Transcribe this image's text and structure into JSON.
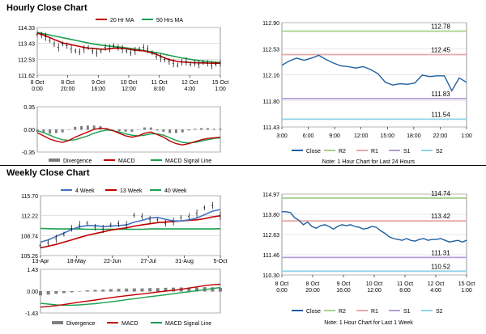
{
  "sections": {
    "hourly_title": "Hourly Close Chart",
    "weekly_title": "Weekly Close Chart"
  },
  "colors": {
    "price": "#000000",
    "ma_short": "#c00000",
    "ma_long": "#1aa050",
    "ma_mid": "#4472c4",
    "close": "#1f5fa0",
    "r2": "#a8d08d",
    "r1": "#e8a8a8",
    "s1": "#b39ddb",
    "s2": "#8fd3e8",
    "macd": "#c00000",
    "signal": "#1aa050",
    "divergence": "#7f7f7f"
  },
  "chart_data": [
    {
      "id": "hourly-price",
      "type": "line",
      "title": "Hourly Close Chart",
      "legend": [
        "20 Hr MA",
        "50 Hrs MA"
      ],
      "y_ticks": [
        "114.33",
        "113.43",
        "112.53",
        "111.62"
      ],
      "ylim": [
        111.62,
        114.33
      ],
      "x_labels": [
        "8 Oct\n0:00",
        "8 Oct\n20:00",
        "9 Oct\n16:00",
        "10 Oct\n12:00",
        "11 Oct\n8:00",
        "12 Oct\n4:00",
        "15 Oct\n1:00"
      ],
      "price": [
        113.95,
        113.9,
        113.8,
        113.6,
        113.4,
        113.2,
        113.4,
        113.3,
        113.1,
        113.0,
        112.95,
        113.1,
        113.2,
        113.0,
        112.9,
        113.0,
        113.2,
        113.15,
        113.3,
        113.2,
        113.1,
        113.0,
        112.9,
        113.0,
        113.1,
        113.2,
        113.1,
        112.9,
        112.7,
        112.6,
        112.5,
        112.4,
        112.3,
        112.2,
        112.35,
        112.4,
        112.25,
        112.3,
        112.25,
        112.35,
        112.3,
        112.2,
        112.25,
        112.3
      ],
      "ma20": [
        114.0,
        113.95,
        113.85,
        113.75,
        113.65,
        113.55,
        113.45,
        113.4,
        113.35,
        113.3,
        113.25,
        113.2,
        113.15,
        113.15,
        113.12,
        113.1,
        113.1,
        113.12,
        113.15,
        113.15,
        113.15,
        113.12,
        113.08,
        113.05,
        113.02,
        113.0,
        112.95,
        112.88,
        112.8,
        112.7,
        112.6,
        112.5,
        112.45,
        112.4,
        112.38,
        112.36,
        112.34,
        112.33,
        112.32,
        112.32,
        112.31,
        112.3,
        112.3,
        112.3
      ],
      "ma50": [
        114.05,
        114.0,
        113.95,
        113.9,
        113.85,
        113.8,
        113.75,
        113.7,
        113.65,
        113.6,
        113.55,
        113.5,
        113.45,
        113.4,
        113.36,
        113.33,
        113.3,
        113.27,
        113.24,
        113.22,
        113.2,
        113.17,
        113.14,
        113.1,
        113.06,
        113.02,
        112.98,
        112.94,
        112.9,
        112.86,
        112.8,
        112.75,
        112.7,
        112.65,
        112.6,
        112.56,
        112.52,
        112.48,
        112.45,
        112.42,
        112.4,
        112.38,
        112.36,
        112.35
      ]
    },
    {
      "id": "hourly-macd",
      "type": "line",
      "y_ticks": [
        "0.35",
        "0.00",
        "-0.35"
      ],
      "ylim": [
        -0.35,
        0.35
      ],
      "legend": [
        "Divergence",
        "MACD",
        "MACD Signal Line"
      ],
      "macd": [
        -0.05,
        -0.1,
        -0.15,
        -0.18,
        -0.2,
        -0.17,
        -0.12,
        -0.08,
        -0.04,
        0.0,
        0.02,
        0.01,
        -0.02,
        -0.06,
        -0.1,
        -0.12,
        -0.1,
        -0.06,
        -0.04,
        -0.08,
        -0.12,
        -0.18,
        -0.22,
        -0.24,
        -0.22,
        -0.19,
        -0.16,
        -0.14,
        -0.13,
        -0.12
      ],
      "signal": [
        -0.02,
        -0.05,
        -0.09,
        -0.13,
        -0.16,
        -0.17,
        -0.16,
        -0.13,
        -0.1,
        -0.06,
        -0.03,
        -0.01,
        -0.02,
        -0.04,
        -0.07,
        -0.09,
        -0.1,
        -0.09,
        -0.07,
        -0.07,
        -0.09,
        -0.13,
        -0.17,
        -0.2,
        -0.21,
        -0.2,
        -0.18,
        -0.16,
        -0.14,
        -0.13
      ],
      "divergence": [
        -0.03,
        -0.05,
        -0.06,
        -0.05,
        -0.04,
        0.0,
        0.04,
        0.05,
        0.06,
        0.06,
        0.05,
        0.02,
        0.0,
        -0.02,
        -0.03,
        -0.03,
        0.0,
        0.03,
        0.03,
        -0.01,
        -0.03,
        -0.05,
        -0.05,
        -0.04,
        -0.01,
        0.01,
        0.02,
        0.02,
        0.01,
        0.01
      ]
    },
    {
      "id": "hourly-levels",
      "type": "line",
      "y_ticks": [
        "112.90",
        "112.53",
        "112.16",
        "111.80",
        "111.43"
      ],
      "ylim": [
        111.43,
        112.9
      ],
      "x_labels": [
        "3:00",
        "6:00",
        "9:00",
        "12:00",
        "15:00",
        "18:00",
        "22:00",
        "1:00"
      ],
      "close": [
        112.3,
        112.36,
        112.4,
        112.37,
        112.4,
        112.44,
        112.38,
        112.33,
        112.29,
        112.28,
        112.26,
        112.28,
        112.24,
        112.18,
        112.06,
        112.02,
        112.04,
        112.03,
        112.05,
        112.16,
        112.14,
        112.15,
        112.15,
        111.94,
        112.12,
        112.06
      ],
      "levels": [
        {
          "name": "R2",
          "value": 112.78,
          "label": "112.78"
        },
        {
          "name": "R1",
          "value": 112.45,
          "label": "112.45"
        },
        {
          "name": "S1",
          "value": 111.83,
          "label": "111.83"
        },
        {
          "name": "S2",
          "value": 111.54,
          "label": "111.54"
        }
      ],
      "legend": [
        "Close",
        "R2",
        "R1",
        "S1",
        "S2"
      ],
      "note": "Note: 1 Hour Chart for Last 24 Hours"
    },
    {
      "id": "weekly-price",
      "type": "line",
      "legend": [
        "4 Week",
        "13 Week",
        "40 Week"
      ],
      "y_ticks": [
        "115.70",
        "112.22",
        "108.74",
        "105.26"
      ],
      "ylim": [
        105.26,
        115.7
      ],
      "x_labels": [
        "13-Apr",
        "18-May",
        "22-Jun",
        "27-Jul",
        "31-Aug",
        "5-Oct"
      ],
      "price": [
        107.0,
        107.5,
        108.2,
        109.0,
        110.0,
        110.6,
        110.9,
        110.2,
        109.9,
        110.6,
        110.8,
        110.6,
        112.3,
        112.1,
        111.5,
        111.5,
        110.9,
        111.2,
        111.9,
        112.1,
        112.6,
        113.6,
        114.0,
        112.2
      ],
      "ma4": [
        107.6,
        108.0,
        108.6,
        109.2,
        109.8,
        110.3,
        110.5,
        110.5,
        110.3,
        110.4,
        110.5,
        110.6,
        111.1,
        111.4,
        111.8,
        111.9,
        111.6,
        111.3,
        111.3,
        111.5,
        111.8,
        112.4,
        113.0,
        113.3
      ],
      "ma13": [
        106.6,
        106.9,
        107.2,
        107.6,
        108.0,
        108.4,
        108.8,
        109.1,
        109.4,
        109.7,
        109.9,
        110.1,
        110.4,
        110.6,
        110.8,
        111.0,
        111.1,
        111.2,
        111.3,
        111.4,
        111.5,
        111.7,
        112.0,
        112.2
      ],
      "ma40": [
        110.0,
        109.95,
        109.9,
        109.9,
        109.9,
        109.9,
        109.85,
        109.85,
        109.85,
        109.85,
        109.85,
        109.85,
        109.85,
        109.85,
        109.9,
        109.9,
        109.9,
        109.9,
        109.9,
        109.9,
        109.9,
        109.9,
        109.9,
        109.95
      ]
    },
    {
      "id": "weekly-macd",
      "type": "line",
      "y_ticks": [
        "1.43",
        "0.00",
        "-1.43"
      ],
      "ylim": [
        -1.43,
        1.43
      ],
      "legend": [
        "Divergence",
        "MACD",
        "MACD Signal Line"
      ],
      "macd": [
        -1.05,
        -1.0,
        -0.95,
        -0.88,
        -0.8,
        -0.72,
        -0.65,
        -0.58,
        -0.5,
        -0.43,
        -0.36,
        -0.3,
        -0.24,
        -0.18,
        -0.12,
        -0.06,
        0.0,
        0.06,
        0.12,
        0.2,
        0.28,
        0.36,
        0.42,
        0.45
      ],
      "signal": [
        -0.8,
        -0.85,
        -0.9,
        -0.92,
        -0.92,
        -0.9,
        -0.86,
        -0.82,
        -0.76,
        -0.7,
        -0.63,
        -0.56,
        -0.5,
        -0.43,
        -0.36,
        -0.3,
        -0.24,
        -0.17,
        -0.1,
        -0.04,
        0.03,
        0.1,
        0.17,
        0.24
      ],
      "divergence": [
        -0.25,
        -0.2,
        -0.15,
        -0.1,
        -0.05,
        0.0,
        0.05,
        0.08,
        0.1,
        0.13,
        0.15,
        0.17,
        0.18,
        0.18,
        0.2,
        0.2,
        0.22,
        0.23,
        0.24,
        0.24,
        0.25,
        0.26,
        0.25,
        0.21
      ]
    },
    {
      "id": "weekly-levels",
      "type": "line",
      "y_ticks": [
        "114.97",
        "113.80",
        "112.63",
        "111.46",
        "110.30"
      ],
      "ylim": [
        110.3,
        114.97
      ],
      "x_labels": [
        "8 Oct\n0:00",
        "8 Oct\n20:00",
        "9 Oct\n16:00",
        "10 Oct\n12:00",
        "11 Oct\n8:00",
        "12 Oct\n4:00",
        "15 Oct\n1:00"
      ],
      "close": [
        113.95,
        113.95,
        113.9,
        113.6,
        113.45,
        113.2,
        113.35,
        113.1,
        113.0,
        113.15,
        113.2,
        113.1,
        112.95,
        113.1,
        113.2,
        113.15,
        113.2,
        113.1,
        113.05,
        112.95,
        113.0,
        113.1,
        113.05,
        112.85,
        112.7,
        112.5,
        112.4,
        112.35,
        112.3,
        112.4,
        112.3,
        112.25,
        112.35,
        112.4,
        112.3,
        112.35,
        112.35,
        112.4,
        112.3,
        112.2,
        112.25,
        112.3,
        112.2,
        112.3
      ],
      "levels": [
        {
          "name": "R2",
          "value": 114.74,
          "label": "114.74"
        },
        {
          "name": "R1",
          "value": 113.42,
          "label": "113.42"
        },
        {
          "name": "S1",
          "value": 111.31,
          "label": "111.31"
        },
        {
          "name": "S2",
          "value": 110.52,
          "label": "110.52"
        }
      ],
      "legend": [
        "Close",
        "R2",
        "R1",
        "S1",
        "S2"
      ],
      "note": "Note: 1 Hour Chart for Last 1 Week"
    }
  ]
}
